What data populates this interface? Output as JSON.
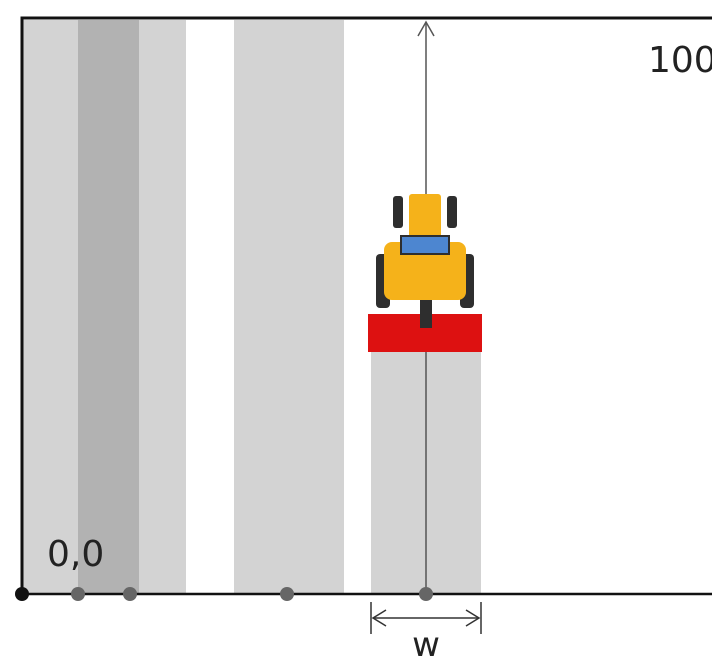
{
  "labels": {
    "origin": "0,0",
    "top_right": "100",
    "width": "w"
  },
  "colors": {
    "background": "#ffffff",
    "frame": "#111111",
    "strip_light": "#d3d3d3",
    "strip_dark": "#b2b2b2",
    "marker": "#666666",
    "origin_marker": "#111111",
    "tractor_body": "#f5b21a",
    "tractor_cab": "#4d86d0",
    "tractor_tire": "#2e2e2e",
    "implement": "#dd1111"
  }
}
